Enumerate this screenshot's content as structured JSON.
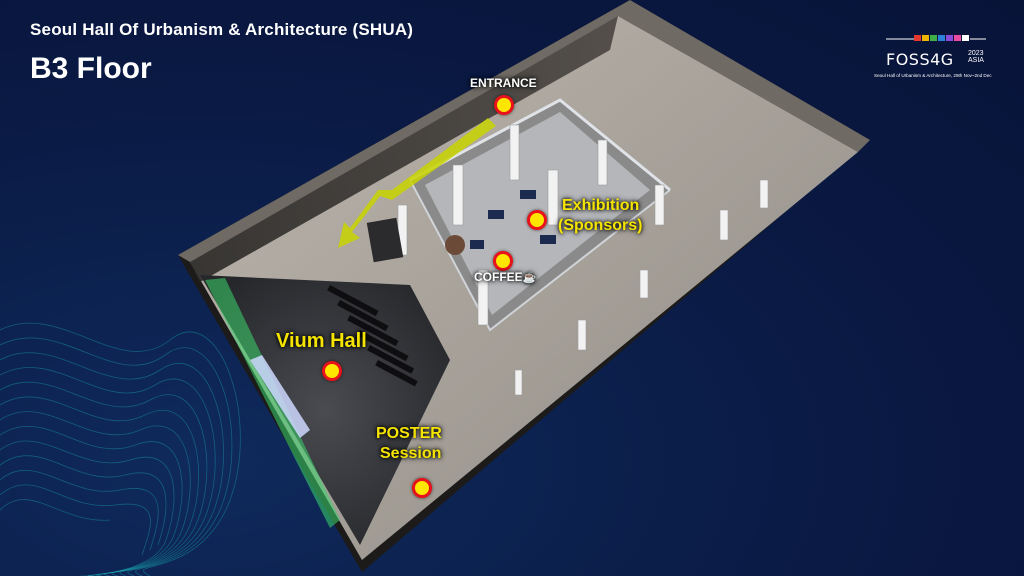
{
  "header": {
    "subtitle": "Seoul Hall Of Urbanism & Architecture (SHUA)",
    "title": "B3 Floor"
  },
  "logo": {
    "wordmark": "FOSS4G",
    "year": "2023",
    "region": "ASIA",
    "tagline": "Seoul Hall of Urbanism & Architecture, 29th Nov~2nd Dec"
  },
  "labels": {
    "entrance": "ENTRANCE",
    "exhibition_line1": "Exhibition",
    "exhibition_line2": "(Sponsors)",
    "coffee": "COFFEE",
    "coffee_icon": "coffee-cup-icon",
    "vium_hall": "Vium Hall",
    "poster_line1": "POSTER",
    "poster_line2": "Session"
  },
  "colors": {
    "background": "#0a1a44",
    "label_yellow": "#f5e400",
    "marker_fill": "#ffe600",
    "marker_ring": "#e8121a",
    "arrow": "#c8d400"
  },
  "icons": {
    "marker": "location-marker-icon",
    "arrow": "direction-arrow-icon"
  }
}
